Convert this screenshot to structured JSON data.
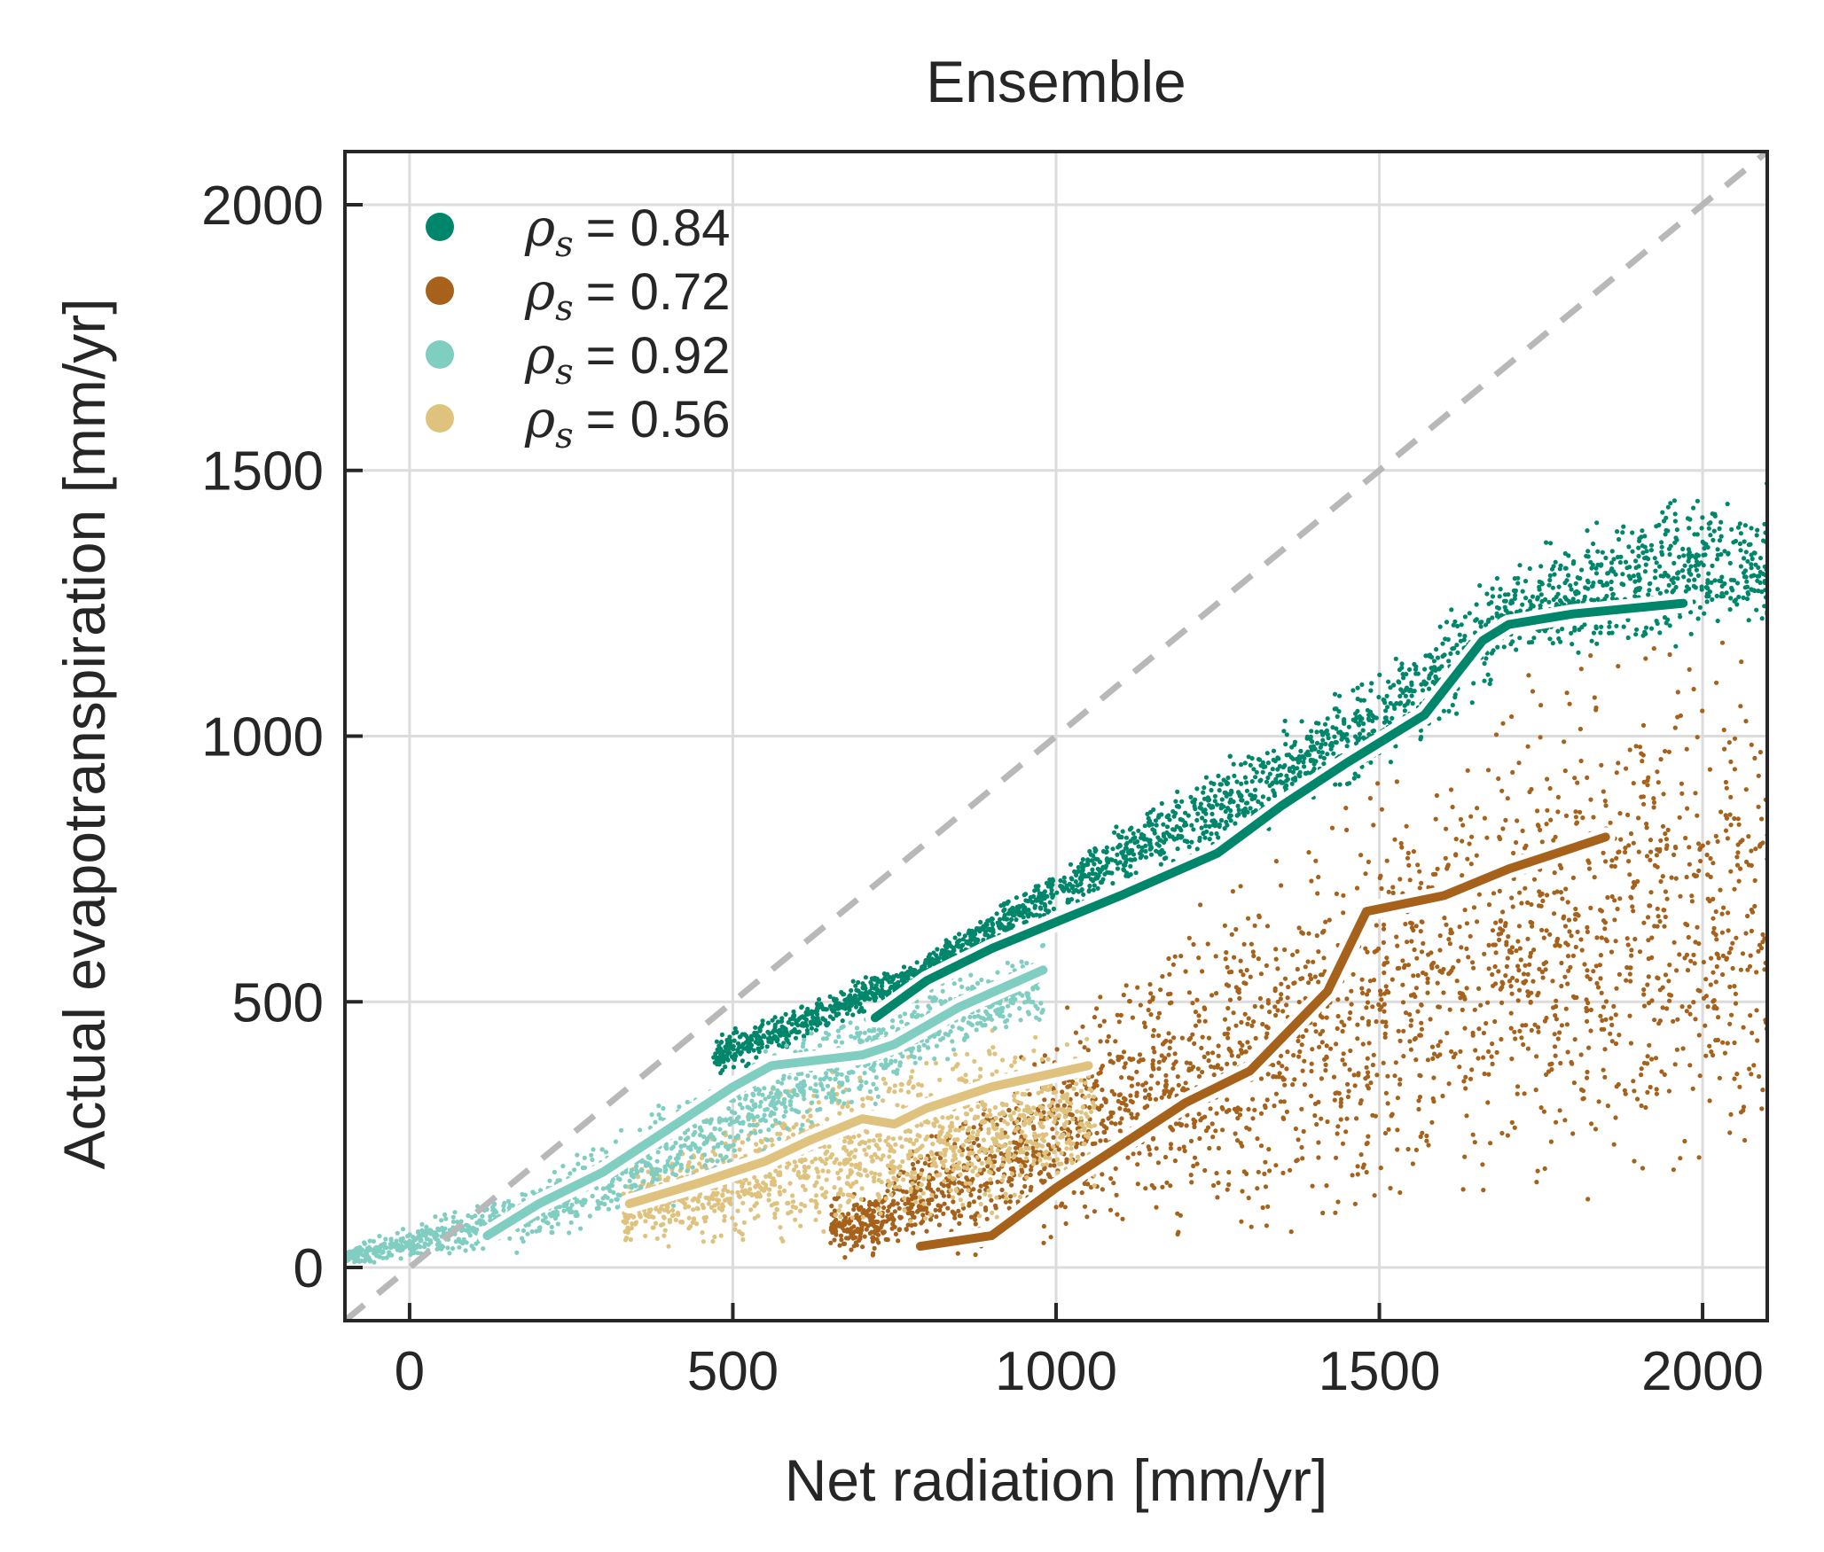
{
  "chart_data": {
    "type": "scatter",
    "title": "Ensemble",
    "xlabel": "Net radiation [mm/yr]",
    "ylabel": "Actual evapotranspiration [mm/yr]",
    "xlim": [
      -100,
      2100
    ],
    "ylim": [
      -100,
      2100
    ],
    "xticks": [
      0,
      500,
      1000,
      1500,
      2000
    ],
    "yticks": [
      0,
      500,
      1000,
      1500,
      2000
    ],
    "xtick_labels": [
      "0",
      "500",
      "1000",
      "1500",
      "2000"
    ],
    "ytick_labels": [
      "0",
      "500",
      "1000",
      "1500",
      "2000"
    ],
    "grid": true,
    "legend_position": "top-left",
    "reference_line": {
      "style": "dashed",
      "color": "#b8b8b8",
      "from": [
        -100,
        -100
      ],
      "to": [
        2100,
        2100
      ]
    },
    "series": [
      {
        "label_symbol": "ρs",
        "label_value": "= 0.84",
        "color": "#00876b",
        "point_cloud": {
          "x_range": [
            470,
            2100
          ],
          "lower": [
            [
              480,
              350
            ],
            [
              700,
              460
            ],
            [
              1000,
              650
            ],
            [
              1500,
              900
            ],
            [
              1700,
              1100
            ],
            [
              2000,
              1150
            ]
          ],
          "upper": [
            [
              480,
              450
            ],
            [
              800,
              600
            ],
            [
              1100,
              850
            ],
            [
              1500,
              1150
            ],
            [
              1700,
              1350
            ],
            [
              2000,
              1500
            ]
          ]
        },
        "median_line": {
          "x": [
            720,
            800,
            900,
            1000,
            1100,
            1250,
            1350,
            1450,
            1570,
            1660,
            1700,
            1800,
            1970
          ],
          "y": [
            470,
            540,
            600,
            650,
            700,
            780,
            870,
            950,
            1040,
            1180,
            1210,
            1230,
            1250
          ]
        }
      },
      {
        "label_symbol": "ρs",
        "label_value": "= 0.72",
        "color": "#a6611a",
        "point_cloud": {
          "x_range": [
            650,
            2100
          ],
          "lower": [
            [
              650,
              5
            ],
            [
              1000,
              5
            ],
            [
              1500,
              20
            ],
            [
              2000,
              30
            ]
          ],
          "upper": [
            [
              700,
              150
            ],
            [
              1000,
              500
            ],
            [
              1300,
              800
            ],
            [
              1500,
              1000
            ],
            [
              1800,
              1250
            ],
            [
              2100,
              1300
            ]
          ]
        },
        "median_line": {
          "x": [
            790,
            900,
            1000,
            1100,
            1200,
            1300,
            1420,
            1480,
            1600,
            1700,
            1850
          ],
          "y": [
            40,
            60,
            150,
            230,
            310,
            370,
            520,
            670,
            700,
            750,
            810
          ]
        }
      },
      {
        "label_symbol": "ρs",
        "label_value": "= 0.92",
        "color": "#80cdc1",
        "point_cloud": {
          "x_range": [
            -100,
            980
          ],
          "lower": [
            [
              -100,
              0
            ],
            [
              200,
              20
            ],
            [
              500,
              150
            ],
            [
              800,
              350
            ],
            [
              980,
              450
            ]
          ],
          "upper": [
            [
              -100,
              40
            ],
            [
              200,
              180
            ],
            [
              500,
              420
            ],
            [
              800,
              560
            ],
            [
              980,
              620
            ]
          ]
        },
        "median_line": {
          "x": [
            120,
            200,
            300,
            400,
            500,
            560,
            700,
            750,
            850,
            980
          ],
          "y": [
            60,
            120,
            180,
            260,
            340,
            380,
            400,
            420,
            490,
            560
          ]
        }
      },
      {
        "label_symbol": "ρs",
        "label_value": "= 0.56",
        "color": "#dfc27d",
        "point_cloud": {
          "x_range": [
            330,
            1060
          ],
          "lower": [
            [
              330,
              20
            ],
            [
              700,
              20
            ],
            [
              1060,
              100
            ]
          ],
          "upper": [
            [
              330,
              200
            ],
            [
              600,
              380
            ],
            [
              800,
              450
            ],
            [
              1060,
              470
            ]
          ]
        },
        "median_line": {
          "x": [
            340,
            450,
            550,
            620,
            700,
            750,
            800,
            900,
            1050
          ],
          "y": [
            120,
            160,
            200,
            240,
            280,
            270,
            300,
            340,
            380
          ]
        }
      }
    ]
  }
}
